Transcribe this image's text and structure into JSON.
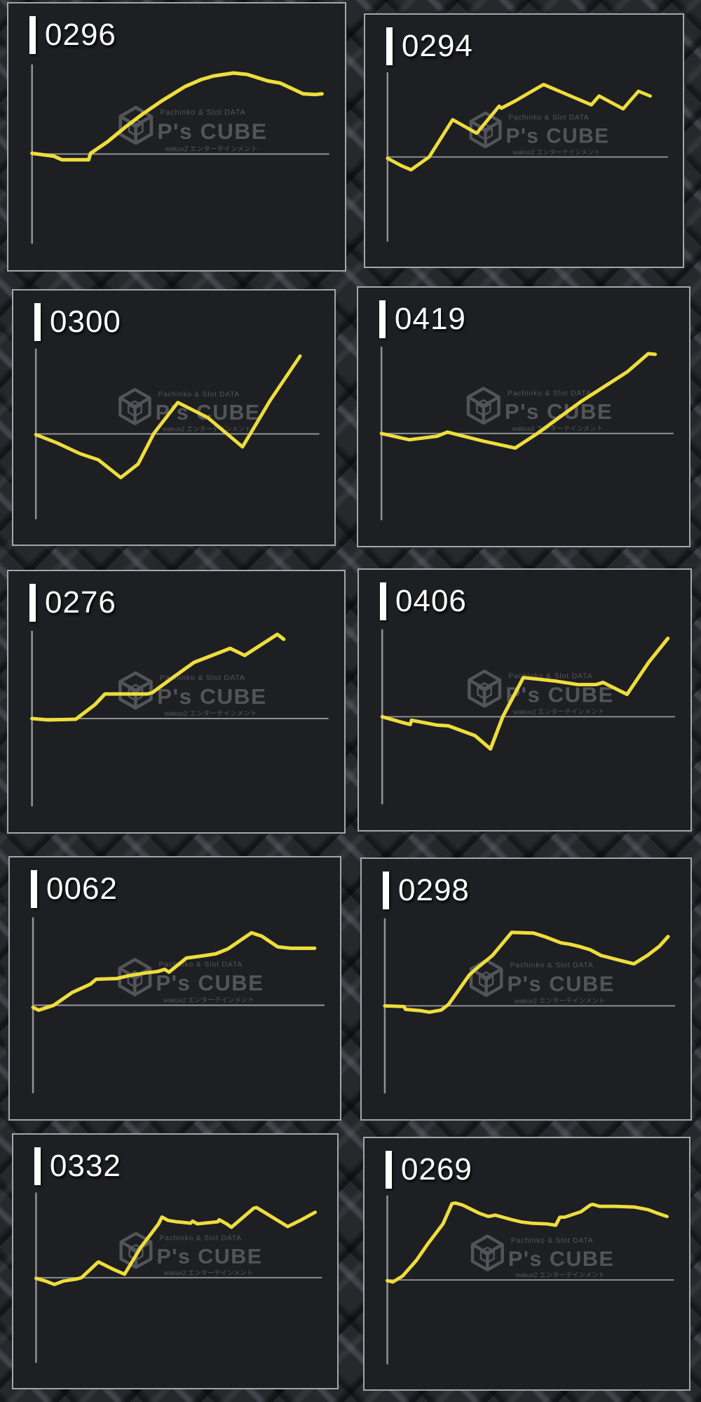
{
  "watermark": {
    "tagline": "Pachinko & Slot DATA",
    "brand": "P's CUBE",
    "subtext": "wakux2 エンターテインメント",
    "color": "#85868b"
  },
  "colors": {
    "line": "#eedd3c",
    "panel_bg": "#1e1f23",
    "panel_border": "#a4a6a9",
    "axis": "#919295",
    "label_text": "#ffffff",
    "page_bg": "#232528"
  },
  "chart_meta": {
    "kind": "pachinko slump graphs (payout vs. time), one per machine",
    "y_unit": "relative payout (offset above zero line, axis half-range = 125)",
    "x_unit": "session progress (fraction of plot width)",
    "ylim": [
      -125,
      125
    ],
    "zero_line": true,
    "grid": false,
    "axis_labels_visible": false
  },
  "chart_data": [
    {
      "type": "line",
      "machine_no": "0296",
      "x": [
        0,
        0.075,
        0.103,
        0.195,
        0.202,
        0.26,
        0.32,
        0.382,
        0.447,
        0.527,
        0.584,
        0.627,
        0.695,
        0.743,
        0.813,
        0.856,
        0.935,
        0.976,
        1.0
      ],
      "y": [
        1,
        -3,
        -8,
        -8,
        1,
        17,
        37,
        56,
        74,
        94,
        104,
        109,
        113,
        111,
        102,
        99,
        84,
        83,
        84
      ]
    },
    {
      "type": "line",
      "machine_no": "0294",
      "x": [
        0,
        0.051,
        0.086,
        0.152,
        0.238,
        0.326,
        0.408,
        0.416,
        0.468,
        0.57,
        0.669,
        0.745,
        0.773,
        0.81,
        0.861,
        0.917,
        0.96
      ],
      "y": [
        -2,
        -13,
        -19,
        0,
        55,
        35,
        75,
        72,
        83,
        107,
        90,
        77,
        90,
        82,
        71,
        97,
        90
      ]
    },
    {
      "type": "line",
      "machine_no": "0300",
      "x": [
        0,
        0.075,
        0.16,
        0.226,
        0.307,
        0.37,
        0.427,
        0.513,
        0.621,
        0.747,
        0.847,
        0.955
      ],
      "y": [
        -1,
        -13,
        -29,
        -38,
        -64,
        -44,
        1,
        46,
        24,
        -19,
        49,
        114
      ]
    },
    {
      "type": "line",
      "machine_no": "0419",
      "x": [
        0,
        0.097,
        0.195,
        0.231,
        0.357,
        0.469,
        0.547,
        0.7,
        0.863,
        0.936,
        0.96
      ],
      "y": [
        0,
        -9,
        -4,
        2,
        -11,
        -21,
        0,
        46,
        89,
        115,
        114
      ]
    },
    {
      "type": "line",
      "machine_no": "0276",
      "x": [
        0,
        0.056,
        0.151,
        0.218,
        0.252,
        0.399,
        0.416,
        0.492,
        0.56,
        0.685,
        0.735,
        0.848,
        0.87
      ],
      "y": [
        0,
        -2,
        -1,
        20,
        35,
        35,
        37,
        60,
        80,
        100,
        90,
        120,
        113
      ]
    },
    {
      "type": "line",
      "machine_no": "0406",
      "x": [
        0,
        0.069,
        0.098,
        0.103,
        0.193,
        0.232,
        0.325,
        0.379,
        0.422,
        0.494,
        0.606,
        0.685,
        0.749,
        0.773,
        0.857,
        0.933,
        1.0
      ],
      "y": [
        0,
        -8,
        -11,
        -5,
        -12,
        -13,
        -27,
        -46,
        0,
        56,
        51,
        46,
        46,
        49,
        32,
        78,
        112
      ]
    },
    {
      "type": "line",
      "machine_no": "0062",
      "x": [
        0,
        0.02,
        0.073,
        0.137,
        0.202,
        0.222,
        0.295,
        0.337,
        0.397,
        0.439,
        0.463,
        0.478,
        0.539,
        0.593,
        0.642,
        0.685,
        0.768,
        0.805,
        0.86,
        0.905,
        0.99
      ],
      "y": [
        -3,
        -7,
        0,
        18,
        30,
        37,
        38,
        42,
        46,
        48,
        51,
        47,
        67,
        70,
        73,
        80,
        103,
        98,
        83,
        81,
        81
      ]
    },
    {
      "type": "line",
      "machine_no": "0298",
      "x": [
        0,
        0.068,
        0.073,
        0.128,
        0.157,
        0.199,
        0.225,
        0.298,
        0.32,
        0.38,
        0.448,
        0.525,
        0.564,
        0.622,
        0.654,
        0.685,
        0.726,
        0.763,
        0.792,
        0.83,
        0.879,
        0.927,
        0.969,
        1.0
      ],
      "y": [
        0,
        -1,
        -5,
        -7,
        -9,
        -6,
        2,
        44,
        52,
        72,
        105,
        104,
        99,
        90,
        88,
        85,
        80,
        72,
        69,
        65,
        60,
        72,
        85,
        99
      ]
    },
    {
      "type": "line",
      "machine_no": "0332",
      "x": [
        0,
        0.034,
        0.066,
        0.098,
        0.146,
        0.163,
        0.22,
        0.224,
        0.278,
        0.317,
        0.376,
        0.439,
        0.451,
        0.473,
        0.505,
        0.554,
        0.561,
        0.578,
        0.651,
        0.656,
        0.683,
        0.7,
        0.78,
        0.79,
        0.846,
        0.902,
        0.951,
        1.0
      ],
      "y": [
        -1,
        -5,
        -10,
        -5,
        -2,
        0,
        22,
        23,
        12,
        5,
        45,
        79,
        89,
        84,
        82,
        80,
        83,
        79,
        82,
        85,
        79,
        74,
        102,
        103,
        89,
        75,
        85,
        96
      ]
    },
    {
      "type": "line",
      "machine_no": "0269",
      "x": [
        0,
        0.02,
        0.055,
        0.104,
        0.144,
        0.199,
        0.231,
        0.244,
        0.269,
        0.328,
        0.361,
        0.386,
        0.448,
        0.478,
        0.517,
        0.572,
        0.602,
        0.617,
        0.634,
        0.692,
        0.726,
        0.734,
        0.759,
        0.816,
        0.883,
        0.933,
        0.965,
        1.0
      ],
      "y": [
        -1,
        -3,
        6,
        29,
        53,
        83,
        113,
        114,
        111,
        99,
        94,
        96,
        89,
        86,
        84,
        83,
        81,
        93,
        93,
        101,
        111,
        112,
        109,
        109,
        108,
        104,
        99,
        94
      ]
    }
  ]
}
